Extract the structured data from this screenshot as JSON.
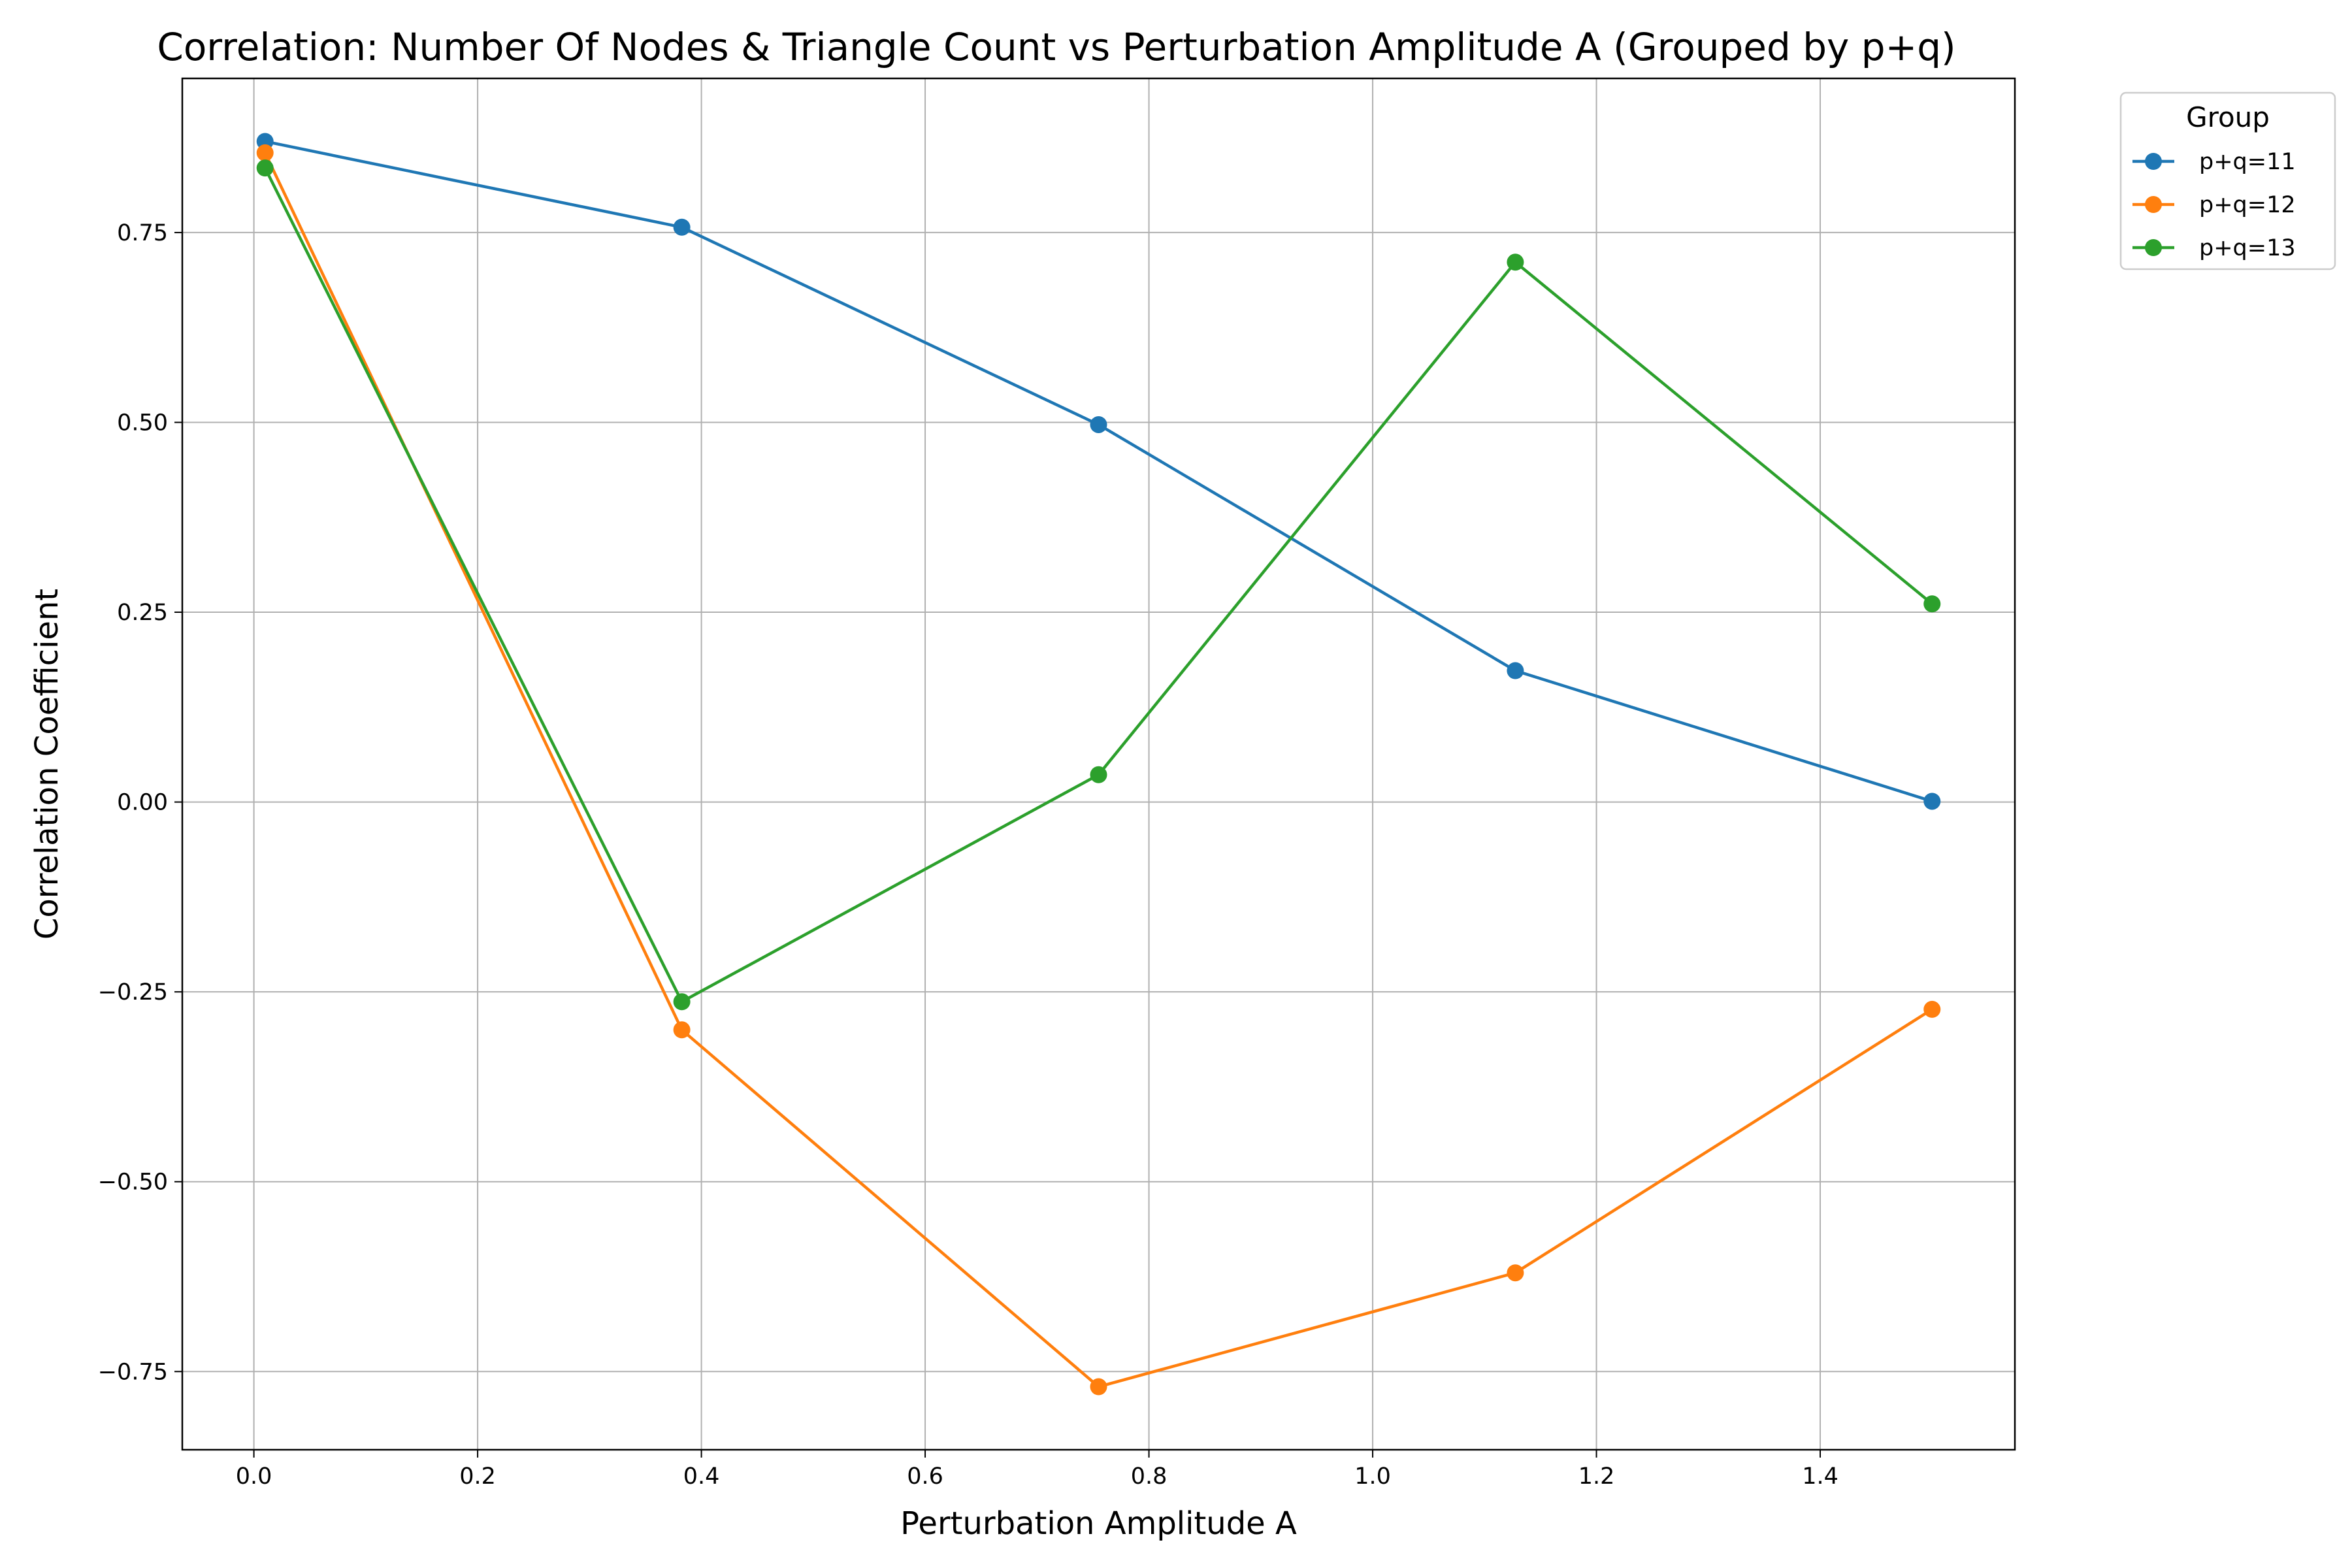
{
  "chart_data": {
    "type": "line",
    "title": "Correlation: Number Of Nodes & Triangle Count vs Perturbation Amplitude A (Grouped by p+q)",
    "xlabel": "Perturbation Amplitude A",
    "ylabel": "Correlation Coefficient",
    "xlim": [
      -0.064,
      1.574
    ],
    "ylim": [
      -0.853,
      0.953
    ],
    "x_ticks": [
      0.0,
      0.2,
      0.4,
      0.6,
      0.8,
      1.0,
      1.2,
      1.4
    ],
    "x_tick_labels": [
      "0.0",
      "0.2",
      "0.4",
      "0.6",
      "0.8",
      "1.0",
      "1.2",
      "1.4"
    ],
    "y_ticks": [
      -0.75,
      -0.5,
      -0.25,
      0.0,
      0.25,
      0.5,
      0.75
    ],
    "y_tick_labels": [
      "−0.75",
      "−0.50",
      "−0.25",
      "0.00",
      "0.25",
      "0.50",
      "0.75"
    ],
    "grid": true,
    "legend_title": "Group",
    "legend_position": "outside top-right",
    "x": [
      0.01,
      0.3825,
      0.755,
      1.1275,
      1.5
    ],
    "series": [
      {
        "name": "p+q=11",
        "color": "#1f77b4",
        "values": [
          0.87,
          0.757,
          0.497,
          0.173,
          0.001
        ]
      },
      {
        "name": "p+q=12",
        "color": "#ff7f0e",
        "values": [
          0.855,
          -0.3,
          -0.77,
          -0.62,
          -0.273
        ]
      },
      {
        "name": "p+q=13",
        "color": "#2ca02c",
        "values": [
          0.835,
          -0.263,
          0.036,
          0.711,
          0.261
        ]
      }
    ]
  }
}
